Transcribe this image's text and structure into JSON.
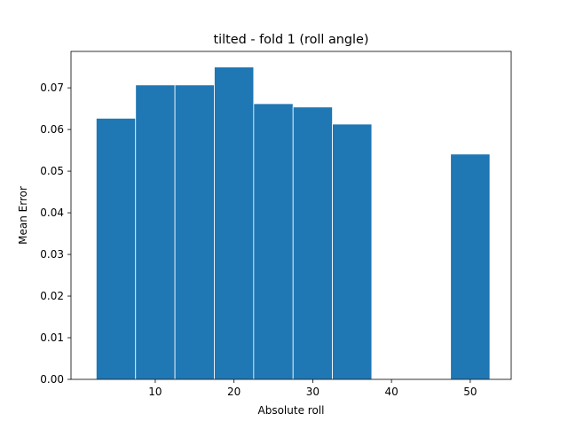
{
  "chart_data": {
    "type": "bar",
    "title": "tilted - fold 1 (roll angle)",
    "xlabel": "Absolute roll",
    "ylabel": "Mean Error",
    "bar_width": 5,
    "x": [
      5,
      10,
      15,
      20,
      25,
      30,
      35,
      50
    ],
    "values": [
      0.0627,
      0.0707,
      0.0707,
      0.075,
      0.0662,
      0.0654,
      0.0613,
      0.0541
    ],
    "xlim": [
      -0.7,
      55.2
    ],
    "ylim": [
      0,
      0.07875
    ],
    "xticks": [
      10,
      20,
      30,
      40,
      50
    ],
    "yticks": [
      0.0,
      0.01,
      0.02,
      0.03,
      0.04,
      0.05,
      0.06,
      0.07
    ],
    "ytick_labels": [
      "0.00",
      "0.01",
      "0.02",
      "0.03",
      "0.04",
      "0.05",
      "0.06",
      "0.07"
    ],
    "xtick_labels": [
      "10",
      "20",
      "30",
      "40",
      "50"
    ],
    "grid": false,
    "legend": "none",
    "bar_color": "#1f77b4",
    "bar_edge_color": "#ffffff"
  }
}
